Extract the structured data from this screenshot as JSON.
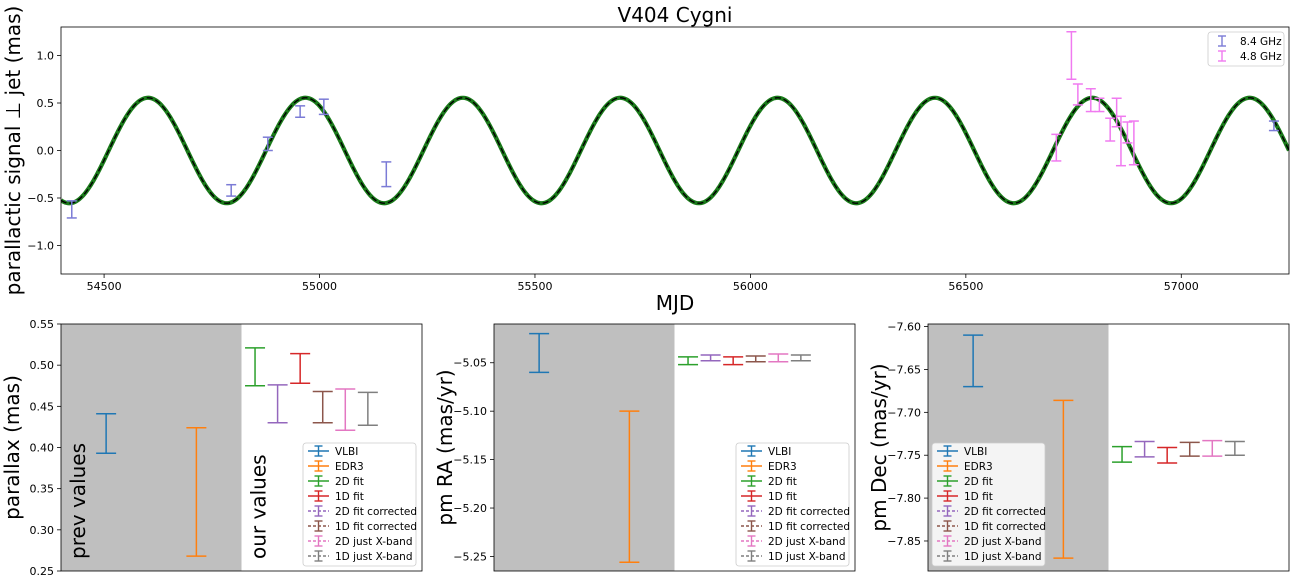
{
  "chart_data": [
    {
      "type": "scatter",
      "title": "V404 Cygni",
      "xlabel": "MJD",
      "ylabel": "parallactic signal  ⊥  jet (mas)",
      "xlim": [
        54400,
        57250
      ],
      "ylim": [
        -1.3,
        1.3
      ],
      "xticks": [
        54500,
        55000,
        55500,
        56000,
        56500,
        57000
      ],
      "xtick_labels": [
        "54500",
        "55000",
        "55500",
        "56000",
        "56500",
        "57000"
      ],
      "yticks": [
        -1.0,
        -0.5,
        0.0,
        0.5,
        1.0
      ],
      "ytick_labels": [
        "−1.0",
        "−0.5",
        "0.0",
        "0.5",
        "1.0"
      ],
      "legend_position": "top-right",
      "model_curve": {
        "amplitude": 0.555,
        "period_days": 365.25,
        "phase_peak_mjd": 54602,
        "color": "#1a7a1a",
        "overlay_color": "#000000",
        "overlay_style": "dashed"
      },
      "series": [
        {
          "name": "8.4 GHz",
          "color": "#7b7bd6",
          "points": [
            {
              "x": 54425,
              "y": -0.62,
              "err": 0.09
            },
            {
              "x": 54795,
              "y": -0.42,
              "err": 0.06
            },
            {
              "x": 54880,
              "y": 0.07,
              "err": 0.07
            },
            {
              "x": 54955,
              "y": 0.41,
              "err": 0.06
            },
            {
              "x": 55010,
              "y": 0.46,
              "err": 0.08
            },
            {
              "x": 55155,
              "y": -0.25,
              "err": 0.13
            },
            {
              "x": 57215,
              "y": 0.26,
              "err": 0.05
            }
          ]
        },
        {
          "name": "4.8 GHz",
          "color": "#f07af0",
          "points": [
            {
              "x": 56710,
              "y": 0.03,
              "err": 0.14
            },
            {
              "x": 56745,
              "y": 1.0,
              "err": 0.25
            },
            {
              "x": 56760,
              "y": 0.59,
              "err": 0.11
            },
            {
              "x": 56790,
              "y": 0.53,
              "err": 0.12
            },
            {
              "x": 56810,
              "y": 0.48,
              "err": 0.07
            },
            {
              "x": 56835,
              "y": 0.22,
              "err": 0.12
            },
            {
              "x": 56850,
              "y": 0.4,
              "err": 0.15
            },
            {
              "x": 56860,
              "y": 0.1,
              "err": 0.26
            },
            {
              "x": 56875,
              "y": 0.19,
              "err": 0.11
            },
            {
              "x": 56890,
              "y": 0.08,
              "err": 0.23
            }
          ]
        }
      ]
    },
    {
      "type": "errorbar",
      "ylabel": "parallax (mas)",
      "ylim": [
        0.25,
        0.55
      ],
      "yticks": [
        0.25,
        0.3,
        0.35,
        0.4,
        0.45,
        0.5,
        0.55
      ],
      "ytick_labels": [
        "0.25",
        "0.30",
        "0.35",
        "0.40",
        "0.45",
        "0.50",
        "0.55"
      ],
      "shade_label": "prev values",
      "ours_label": "our values",
      "legend_position": "bottom-right",
      "entries": [
        {
          "name": "VLBI",
          "x": 1,
          "center": 0.417,
          "err": 0.024
        },
        {
          "name": "EDR3",
          "x": 3,
          "center": 0.346,
          "err": 0.078
        },
        {
          "name": "2D fit",
          "x": 4.3,
          "center": 0.498,
          "err": 0.023
        },
        {
          "name": "2D fit corrected",
          "x": 4.8,
          "center": 0.453,
          "err": 0.023
        },
        {
          "name": "1D fit",
          "x": 5.3,
          "center": 0.496,
          "err": 0.018
        },
        {
          "name": "1D fit corrected",
          "x": 5.8,
          "center": 0.449,
          "err": 0.019
        },
        {
          "name": "2D just X-band",
          "x": 6.3,
          "center": 0.446,
          "err": 0.025
        },
        {
          "name": "1D just X-band",
          "x": 6.8,
          "center": 0.447,
          "err": 0.02
        }
      ]
    },
    {
      "type": "errorbar",
      "ylabel": "pm RA (mas/yr)",
      "ylim": [
        -5.265,
        -5.01
      ],
      "yticks": [
        -5.25,
        -5.2,
        -5.15,
        -5.1,
        -5.05
      ],
      "ytick_labels": [
        "−5.25",
        "−5.20",
        "−5.15",
        "−5.10",
        "−5.05"
      ],
      "legend_position": "bottom-right",
      "entries": [
        {
          "name": "VLBI",
          "x": 1,
          "center": -5.04,
          "err": 0.02
        },
        {
          "name": "EDR3",
          "x": 3,
          "center": -5.178,
          "err": 0.078
        },
        {
          "name": "2D fit",
          "x": 4.3,
          "center": -5.048,
          "err": 0.004
        },
        {
          "name": "2D fit corrected",
          "x": 4.8,
          "center": -5.045,
          "err": 0.003
        },
        {
          "name": "1D fit",
          "x": 5.3,
          "center": -5.048,
          "err": 0.004
        },
        {
          "name": "1D fit corrected",
          "x": 5.8,
          "center": -5.046,
          "err": 0.003
        },
        {
          "name": "2D just X-band",
          "x": 6.3,
          "center": -5.045,
          "err": 0.004
        },
        {
          "name": "1D just X-band",
          "x": 6.8,
          "center": -5.045,
          "err": 0.003
        }
      ]
    },
    {
      "type": "errorbar",
      "ylabel": "pm Dec (mas/yr)",
      "ylim": [
        -7.885,
        -7.597
      ],
      "yticks": [
        -7.85,
        -7.8,
        -7.75,
        -7.7,
        -7.65,
        -7.6
      ],
      "ytick_labels": [
        "−7.85",
        "−7.80",
        "−7.75",
        "−7.70",
        "−7.65",
        "−7.60"
      ],
      "legend_position": "bottom-left",
      "entries": [
        {
          "name": "VLBI",
          "x": 1,
          "center": -7.64,
          "err": 0.03
        },
        {
          "name": "EDR3",
          "x": 3,
          "center": -7.778,
          "err": 0.092
        },
        {
          "name": "2D fit",
          "x": 4.3,
          "center": -7.749,
          "err": 0.009
        },
        {
          "name": "2D fit corrected",
          "x": 4.8,
          "center": -7.743,
          "err": 0.009
        },
        {
          "name": "1D fit",
          "x": 5.3,
          "center": -7.75,
          "err": 0.009
        },
        {
          "name": "1D fit corrected",
          "x": 5.8,
          "center": -7.743,
          "err": 0.008
        },
        {
          "name": "2D just X-band",
          "x": 6.3,
          "center": -7.742,
          "err": 0.009
        },
        {
          "name": "1D just X-band",
          "x": 6.8,
          "center": -7.742,
          "err": 0.008
        }
      ]
    }
  ],
  "legend_styles": {
    "VLBI": {
      "color": "#1f77b4",
      "dashed": false
    },
    "EDR3": {
      "color": "#ff7f0e",
      "dashed": false
    },
    "2D fit": {
      "color": "#2ca02c",
      "dashed": false
    },
    "1D fit": {
      "color": "#d62728",
      "dashed": false
    },
    "2D fit corrected": {
      "color": "#9467bd",
      "dashed": true
    },
    "1D fit corrected": {
      "color": "#8c564b",
      "dashed": true
    },
    "2D just X-band": {
      "color": "#e377c2",
      "dashed": true
    },
    "1D just X-band": {
      "color": "#7f7f7f",
      "dashed": true
    }
  },
  "legend_order": [
    "VLBI",
    "EDR3",
    "2D fit",
    "1D fit",
    "2D fit corrected",
    "1D fit corrected",
    "2D just X-band",
    "1D just X-band"
  ],
  "shade_color": "#bfbfbf"
}
